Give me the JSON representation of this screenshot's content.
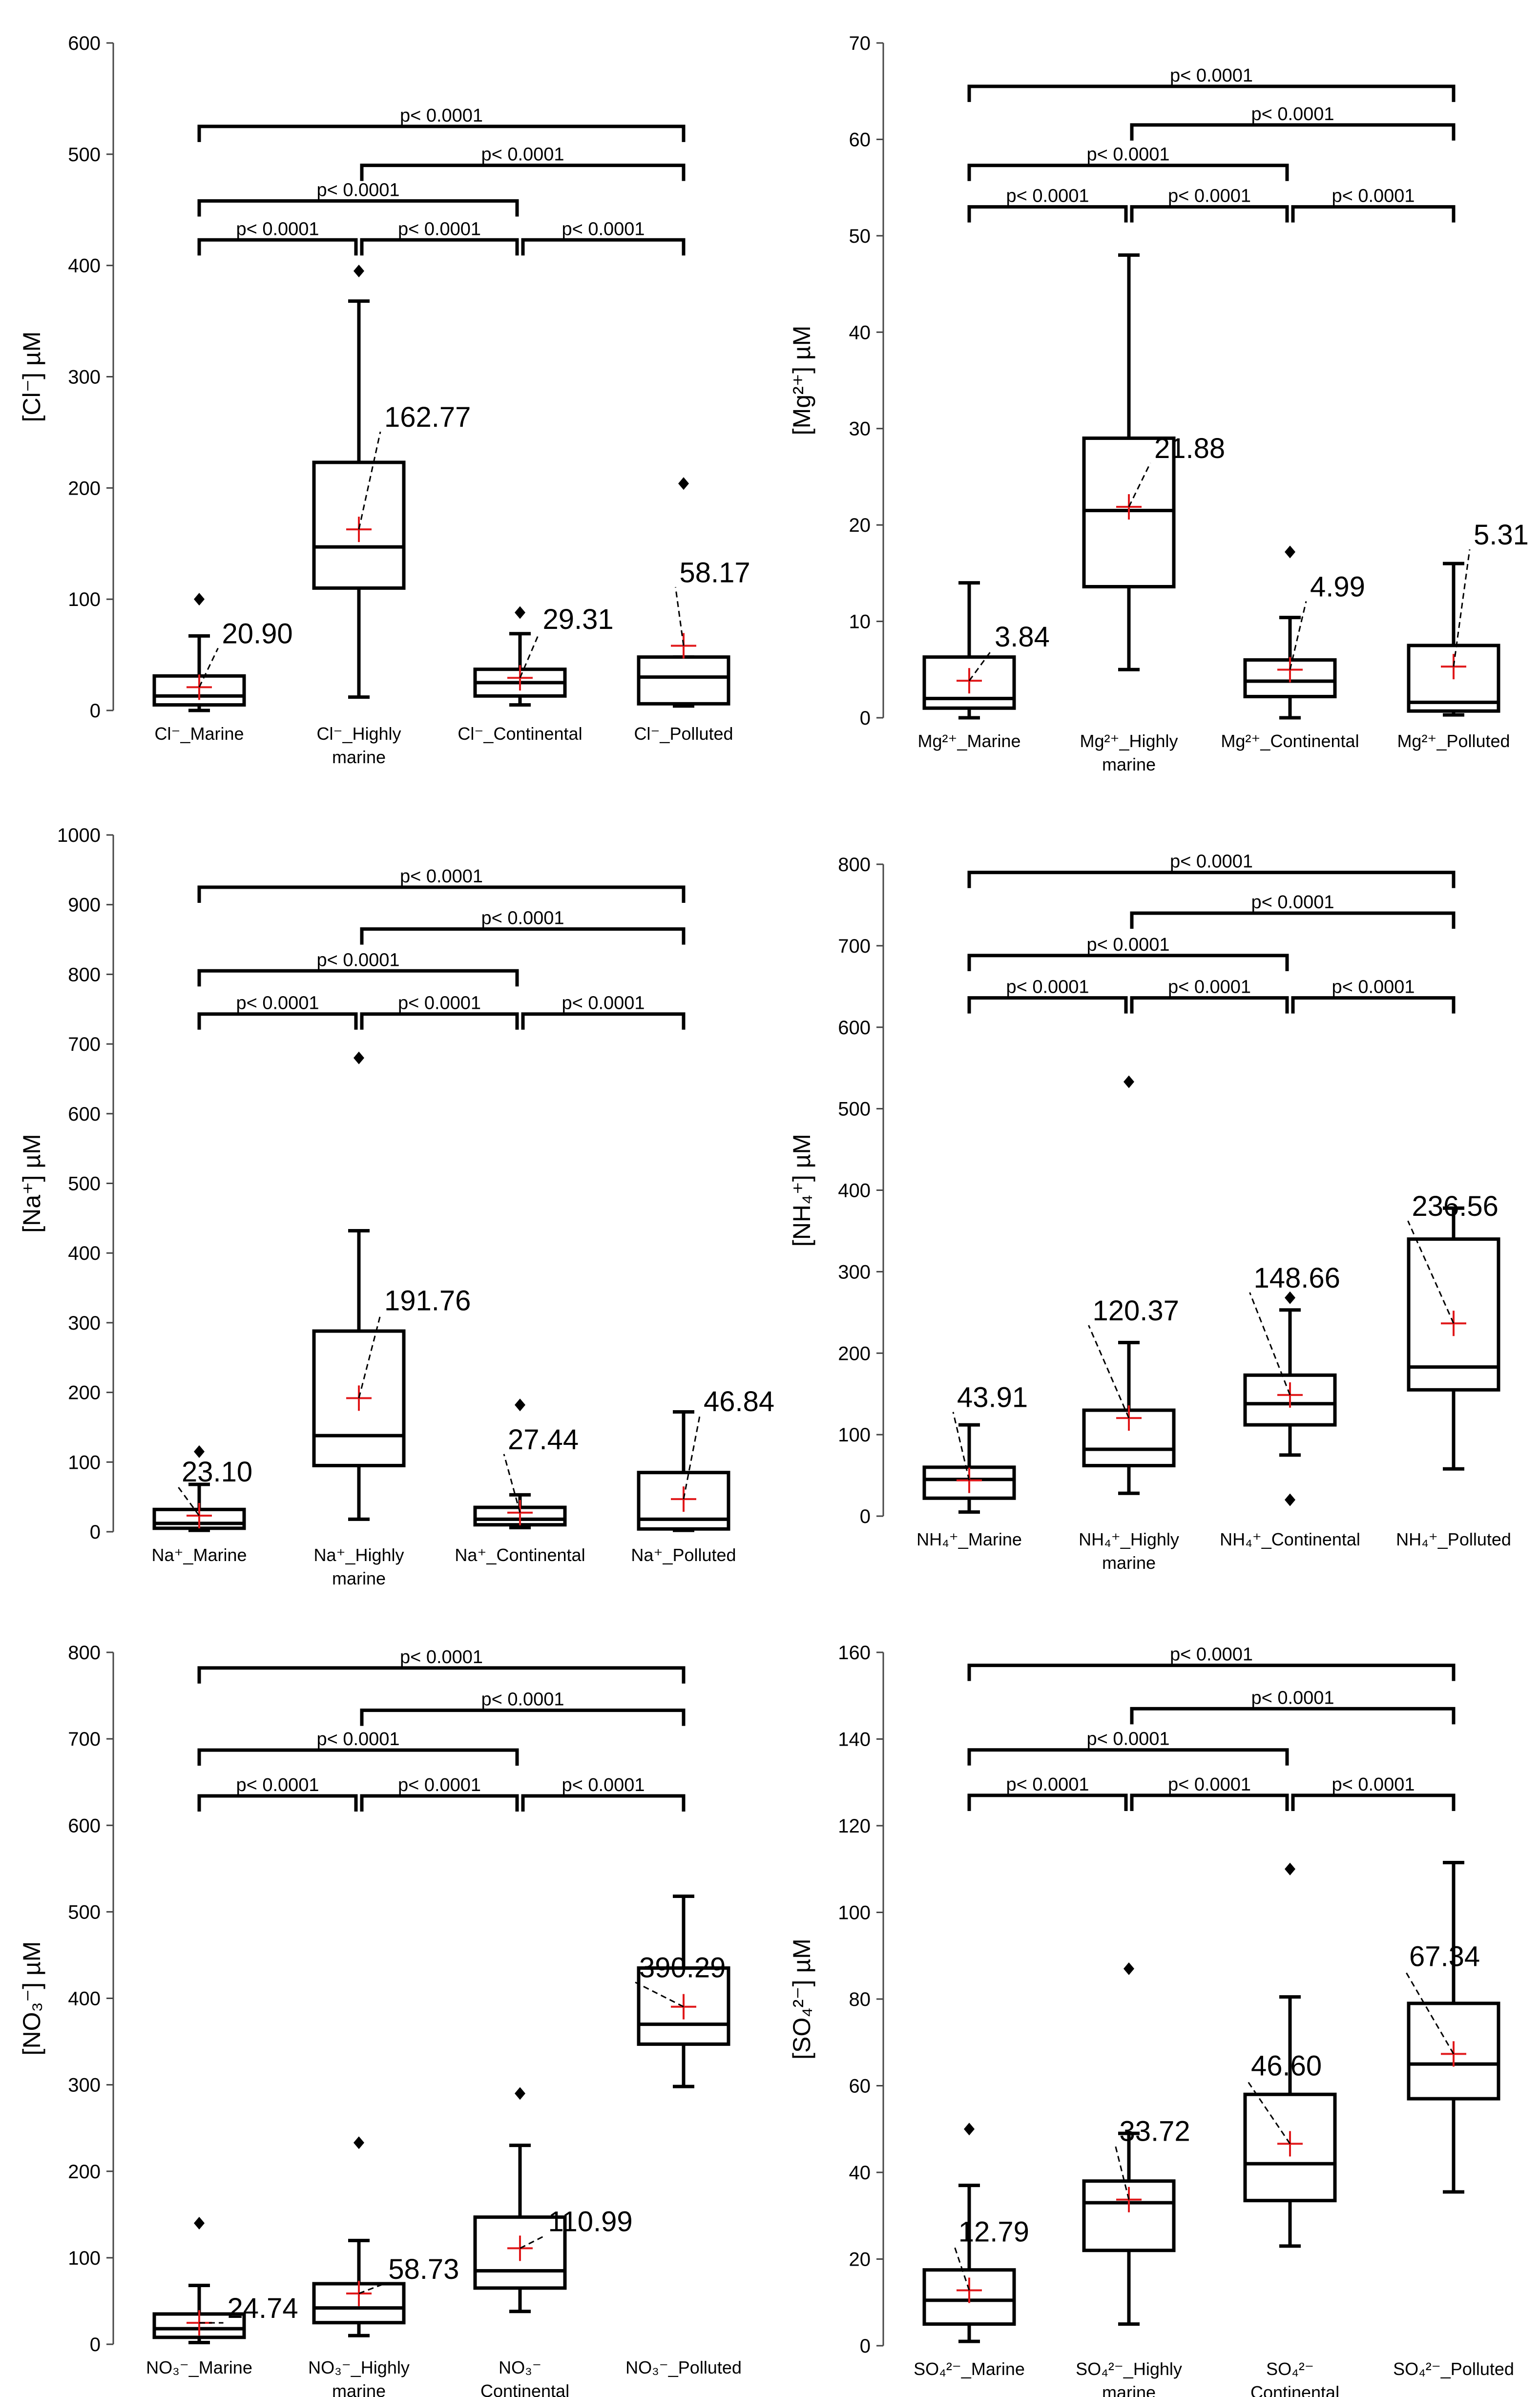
{
  "chart_data": [
    {
      "type": "box",
      "ylabel": "[Cl⁻] µM",
      "ylim": [
        0,
        600
      ],
      "yticks": [
        0,
        100,
        200,
        300,
        400,
        500,
        600
      ],
      "categories": [
        {
          "label": [
            "Cl⁻_Marine"
          ]
        },
        {
          "label": [
            "Cl⁻_Highly",
            "marine"
          ]
        },
        {
          "label": [
            "Cl⁻_Continental"
          ]
        },
        {
          "label": [
            "Cl⁻_Polluted"
          ]
        }
      ],
      "boxes": [
        {
          "whisker_low": 0,
          "q1": 5,
          "median": 13,
          "q3": 31,
          "whisker_high": 67,
          "mean": 20.9,
          "mean_label": "20.90",
          "outliers": [
            100
          ]
        },
        {
          "whisker_low": 12,
          "q1": 110,
          "median": 147,
          "q3": 223,
          "whisker_high": 368,
          "mean": 162.77,
          "mean_label": "162.77",
          "outliers": [
            395
          ]
        },
        {
          "whisker_low": 5,
          "q1": 13,
          "median": 25,
          "q3": 37,
          "whisker_high": 69,
          "mean": 29.31,
          "mean_label": "29.31",
          "outliers": [
            88
          ]
        },
        {
          "whisker_low": 4,
          "q1": 6,
          "median": 30,
          "q3": 48,
          "whisker_high": 48,
          "mean": 58.17,
          "mean_label": "58.17",
          "outliers": [
            204
          ]
        }
      ],
      "significance": [
        {
          "from": 0,
          "to": 3,
          "y": 525,
          "label": "p< 0.0001"
        },
        {
          "from": 1,
          "to": 3,
          "y": 490,
          "label": "p< 0.0001"
        },
        {
          "from": 0,
          "to": 2,
          "y": 458,
          "label": "p< 0.0001"
        },
        {
          "from": 0,
          "to": 1,
          "y": 423,
          "label": "p< 0.0001"
        },
        {
          "from": 1,
          "to": 2,
          "y": 423,
          "label": "p< 0.0001"
        },
        {
          "from": 2,
          "to": 3,
          "y": 423,
          "label": "p< 0.0001"
        }
      ]
    },
    {
      "type": "box",
      "ylabel": "[Mg²⁺] µM",
      "ylim": [
        0,
        70
      ],
      "yticks": [
        0,
        10,
        20,
        30,
        40,
        50,
        60,
        70
      ],
      "categories": [
        {
          "label": [
            "Mg²⁺_Marine"
          ]
        },
        {
          "label": [
            "Mg²⁺_Highly",
            "marine"
          ]
        },
        {
          "label": [
            "Mg²⁺_Continental"
          ]
        },
        {
          "label": [
            "Mg²⁺_Polluted"
          ]
        }
      ],
      "boxes": [
        {
          "whisker_low": 0,
          "q1": 1,
          "median": 2,
          "q3": 6.3,
          "whisker_high": 14,
          "mean": 3.84,
          "mean_label": "3.84",
          "outliers": []
        },
        {
          "whisker_low": 5,
          "q1": 13.6,
          "median": 21.5,
          "q3": 29,
          "whisker_high": 48,
          "mean": 21.88,
          "mean_label": "21.88",
          "outliers": []
        },
        {
          "whisker_low": 0,
          "q1": 2.2,
          "median": 3.8,
          "q3": 6,
          "whisker_high": 10.4,
          "mean": 4.99,
          "mean_label": "4.99",
          "outliers": [
            17.2
          ]
        },
        {
          "whisker_low": 0.3,
          "q1": 0.7,
          "median": 1.6,
          "q3": 7.5,
          "whisker_high": 16,
          "mean": 5.31,
          "mean_label": "5.31",
          "outliers": []
        }
      ],
      "significance": [
        {
          "from": 0,
          "to": 3,
          "y": 65.5,
          "label": "p< 0.0001"
        },
        {
          "from": 1,
          "to": 3,
          "y": 61.5,
          "label": "p< 0.0001"
        },
        {
          "from": 0,
          "to": 2,
          "y": 57.3,
          "label": "p< 0.0001"
        },
        {
          "from": 0,
          "to": 1,
          "y": 53,
          "label": "p< 0.0001"
        },
        {
          "from": 1,
          "to": 2,
          "y": 53,
          "label": "p< 0.0001"
        },
        {
          "from": 2,
          "to": 3,
          "y": 53,
          "label": "p< 0.0001"
        }
      ]
    },
    {
      "type": "box",
      "ylabel": "[Na⁺] µM",
      "ylim": [
        0,
        1000
      ],
      "yticks": [
        0,
        100,
        200,
        300,
        400,
        500,
        600,
        700,
        800,
        900,
        1000
      ],
      "categories": [
        {
          "label": [
            "Na⁺_Marine"
          ]
        },
        {
          "label": [
            "Na⁺_Highly",
            "marine"
          ]
        },
        {
          "label": [
            "Na⁺_Continental"
          ]
        },
        {
          "label": [
            "Na⁺_Polluted"
          ]
        }
      ],
      "boxes": [
        {
          "whisker_low": 2,
          "q1": 5,
          "median": 12,
          "q3": 32,
          "whisker_high": 68,
          "mean": 23.1,
          "mean_label": "23.10",
          "outliers": [
            115
          ]
        },
        {
          "whisker_low": 18,
          "q1": 95,
          "median": 138,
          "q3": 288,
          "whisker_high": 432,
          "mean": 191.76,
          "mean_label": "191.76",
          "outliers": [
            680
          ]
        },
        {
          "whisker_low": 6,
          "q1": 10,
          "median": 18,
          "q3": 35,
          "whisker_high": 53,
          "mean": 27.44,
          "mean_label": "27.44",
          "outliers": [
            182
          ]
        },
        {
          "whisker_low": 2,
          "q1": 4,
          "median": 18,
          "q3": 85,
          "whisker_high": 172,
          "mean": 46.84,
          "mean_label": "46.84",
          "outliers": []
        }
      ],
      "significance": [
        {
          "from": 0,
          "to": 3,
          "y": 925,
          "label": "p< 0.0001"
        },
        {
          "from": 1,
          "to": 3,
          "y": 865,
          "label": "p< 0.0001"
        },
        {
          "from": 0,
          "to": 2,
          "y": 805,
          "label": "p< 0.0001"
        },
        {
          "from": 0,
          "to": 1,
          "y": 743,
          "label": "p< 0.0001"
        },
        {
          "from": 1,
          "to": 2,
          "y": 743,
          "label": "p< 0.0001"
        },
        {
          "from": 2,
          "to": 3,
          "y": 743,
          "label": "p< 0.0001"
        }
      ]
    },
    {
      "type": "box",
      "ylabel": "[NH₄⁺] µM",
      "ylim": [
        0,
        800
      ],
      "yticks": [
        0,
        100,
        200,
        300,
        400,
        500,
        600,
        700,
        800
      ],
      "categories": [
        {
          "label": [
            "NH₄⁺_Marine"
          ]
        },
        {
          "label": [
            "NH₄⁺_Highly",
            "marine"
          ]
        },
        {
          "label": [
            "NH₄⁺_Continental"
          ]
        },
        {
          "label": [
            "NH₄⁺_Polluted"
          ]
        }
      ],
      "boxes": [
        {
          "whisker_low": 5,
          "q1": 22,
          "median": 45,
          "q3": 60,
          "whisker_high": 112,
          "mean": 43.91,
          "mean_label": "43.91",
          "outliers": []
        },
        {
          "whisker_low": 28,
          "q1": 62,
          "median": 82,
          "q3": 130,
          "whisker_high": 213,
          "mean": 120.37,
          "mean_label": "120.37",
          "outliers": [
            533
          ]
        },
        {
          "whisker_low": 75,
          "q1": 112,
          "median": 138,
          "q3": 173,
          "whisker_high": 253,
          "mean": 148.66,
          "mean_label": "148.66",
          "outliers": [
            268,
            20
          ]
        },
        {
          "whisker_low": 58,
          "q1": 155,
          "median": 183,
          "q3": 340,
          "whisker_high": 378,
          "mean": 236.56,
          "mean_label": "236.56",
          "outliers": []
        }
      ],
      "significance": [
        {
          "from": 0,
          "to": 3,
          "y": 790,
          "label": "p< 0.0001"
        },
        {
          "from": 1,
          "to": 3,
          "y": 740,
          "label": "p< 0.0001"
        },
        {
          "from": 0,
          "to": 2,
          "y": 688,
          "label": "p< 0.0001"
        },
        {
          "from": 0,
          "to": 1,
          "y": 636,
          "label": "p< 0.0001"
        },
        {
          "from": 1,
          "to": 2,
          "y": 636,
          "label": "p< 0.0001"
        },
        {
          "from": 2,
          "to": 3,
          "y": 636,
          "label": "p< 0.0001"
        }
      ]
    },
    {
      "type": "box",
      "ylabel": "[NO₃⁻] µM",
      "ylim": [
        0,
        800
      ],
      "yticks": [
        0,
        100,
        200,
        300,
        400,
        500,
        600,
        700,
        800
      ],
      "categories": [
        {
          "label": [
            "NO₃⁻_Marine"
          ]
        },
        {
          "label": [
            "NO₃⁻_Highly",
            "marine"
          ]
        },
        {
          "label": [
            "NO₃⁻",
            "_Continental"
          ]
        },
        {
          "label": [
            "NO₃⁻_Polluted"
          ]
        }
      ],
      "boxes": [
        {
          "whisker_low": 2,
          "q1": 8,
          "median": 18,
          "q3": 35,
          "whisker_high": 68,
          "mean": 24.74,
          "mean_label": "24.74",
          "outliers": [
            140
          ]
        },
        {
          "whisker_low": 10,
          "q1": 25,
          "median": 42,
          "q3": 70,
          "whisker_high": 120,
          "mean": 58.73,
          "mean_label": "58.73",
          "outliers": [
            233
          ]
        },
        {
          "whisker_low": 38,
          "q1": 65,
          "median": 85,
          "q3": 147,
          "whisker_high": 230,
          "mean": 110.99,
          "mean_label": "110.99",
          "outliers": [
            290
          ]
        },
        {
          "whisker_low": 298,
          "q1": 347,
          "median": 370,
          "q3": 435,
          "whisker_high": 518,
          "mean": 390.29,
          "mean_label": "390.29",
          "outliers": []
        }
      ],
      "significance": [
        {
          "from": 0,
          "to": 3,
          "y": 782,
          "label": "p< 0.0001"
        },
        {
          "from": 1,
          "to": 3,
          "y": 733,
          "label": "p< 0.0001"
        },
        {
          "from": 0,
          "to": 2,
          "y": 687,
          "label": "p< 0.0001"
        },
        {
          "from": 0,
          "to": 1,
          "y": 634,
          "label": "p< 0.0001"
        },
        {
          "from": 1,
          "to": 2,
          "y": 634,
          "label": "p< 0.0001"
        },
        {
          "from": 2,
          "to": 3,
          "y": 634,
          "label": "p< 0.0001"
        }
      ]
    },
    {
      "type": "box",
      "ylabel": "[SO₄²⁻] µM",
      "ylim": [
        0,
        160
      ],
      "yticks": [
        0,
        20,
        40,
        60,
        80,
        100,
        120,
        140,
        160
      ],
      "categories": [
        {
          "label": [
            "SO₄²⁻_Marine"
          ]
        },
        {
          "label": [
            "SO₄²⁻_Highly",
            "marine"
          ]
        },
        {
          "label": [
            "SO₄²⁻",
            "_Continental"
          ]
        },
        {
          "label": [
            "SO₄²⁻_Polluted"
          ]
        }
      ],
      "boxes": [
        {
          "whisker_low": 1,
          "q1": 5,
          "median": 10.5,
          "q3": 17.5,
          "whisker_high": 37,
          "mean": 12.79,
          "mean_label": "12.79",
          "outliers": [
            50
          ]
        },
        {
          "whisker_low": 5,
          "q1": 22,
          "median": 33,
          "q3": 38,
          "whisker_high": 49,
          "mean": 33.72,
          "mean_label": "33.72",
          "outliers": [
            87
          ]
        },
        {
          "whisker_low": 23,
          "q1": 33.5,
          "median": 42,
          "q3": 58,
          "whisker_high": 80.5,
          "mean": 46.6,
          "mean_label": "46.60",
          "outliers": [
            110
          ]
        },
        {
          "whisker_low": 35.5,
          "q1": 57,
          "median": 65,
          "q3": 79,
          "whisker_high": 111.5,
          "mean": 67.34,
          "mean_label": "67.34",
          "outliers": []
        }
      ],
      "significance": [
        {
          "from": 0,
          "to": 3,
          "y": 157,
          "label": "p< 0.0001"
        },
        {
          "from": 1,
          "to": 3,
          "y": 147,
          "label": "p< 0.0001"
        },
        {
          "from": 0,
          "to": 2,
          "y": 137.5,
          "label": "p< 0.0001"
        },
        {
          "from": 0,
          "to": 1,
          "y": 127,
          "label": "p< 0.0001"
        },
        {
          "from": 1,
          "to": 2,
          "y": 127,
          "label": "p< 0.0001"
        },
        {
          "from": 2,
          "to": 3,
          "y": 127,
          "label": "p< 0.0001"
        }
      ]
    }
  ]
}
